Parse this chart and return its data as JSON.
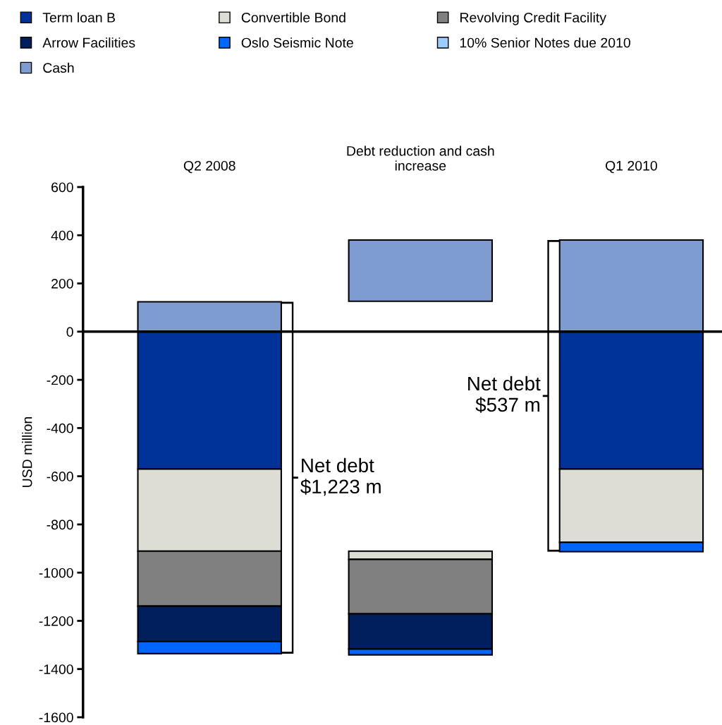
{
  "chart_data": {
    "type": "bar",
    "categories": [
      "Q2 2008",
      "Debt reduction and cash increase",
      "Q1 2010"
    ],
    "ylabel": "USD million",
    "ylim": [
      -1600,
      600
    ],
    "yticks": [
      -1600,
      -1400,
      -1200,
      -1000,
      -800,
      -600,
      -400,
      -200,
      0,
      200,
      400,
      600
    ],
    "grid": false,
    "legend": "top",
    "series": [
      {
        "name": "Term loan B",
        "color": "#003399",
        "values": [
          -570,
          null,
          -570
        ],
        "base": [
          0,
          null,
          0
        ]
      },
      {
        "name": "Convertible Bond",
        "color": "#ddddd5",
        "values": [
          -341,
          -34,
          -304
        ],
        "base": [
          -570,
          -911,
          -570
        ]
      },
      {
        "name": "Revolving Credit Facility",
        "color": "#808080",
        "values": [
          -228,
          -226,
          null
        ],
        "base": [
          -911,
          -945,
          null
        ]
      },
      {
        "name": "Arrow Facilities",
        "color": "#001f5c",
        "values": [
          -147,
          -146,
          null
        ],
        "base": [
          -1139,
          -1171,
          null
        ]
      },
      {
        "name": "Oslo Seismic Note",
        "color": "#0066ff",
        "values": [
          -50,
          -24,
          -39
        ],
        "base": [
          -1286,
          -1317,
          -874
        ]
      },
      {
        "name": "10% Senior Notes due 2010",
        "color": "#99ccff",
        "values": [
          null,
          null,
          null
        ],
        "base": [
          null,
          null,
          null
        ]
      },
      {
        "name": "Cash",
        "color": "#7f9cd0",
        "values": [
          124,
          254,
          380
        ],
        "base": [
          0,
          126,
          0
        ]
      }
    ],
    "ref_lines": [
      {
        "axis": "y",
        "value": 0,
        "color": "#000000"
      }
    ],
    "annotations": [
      "Net debt\n$1,223 m",
      "Net debt\n$537 m"
    ]
  }
}
